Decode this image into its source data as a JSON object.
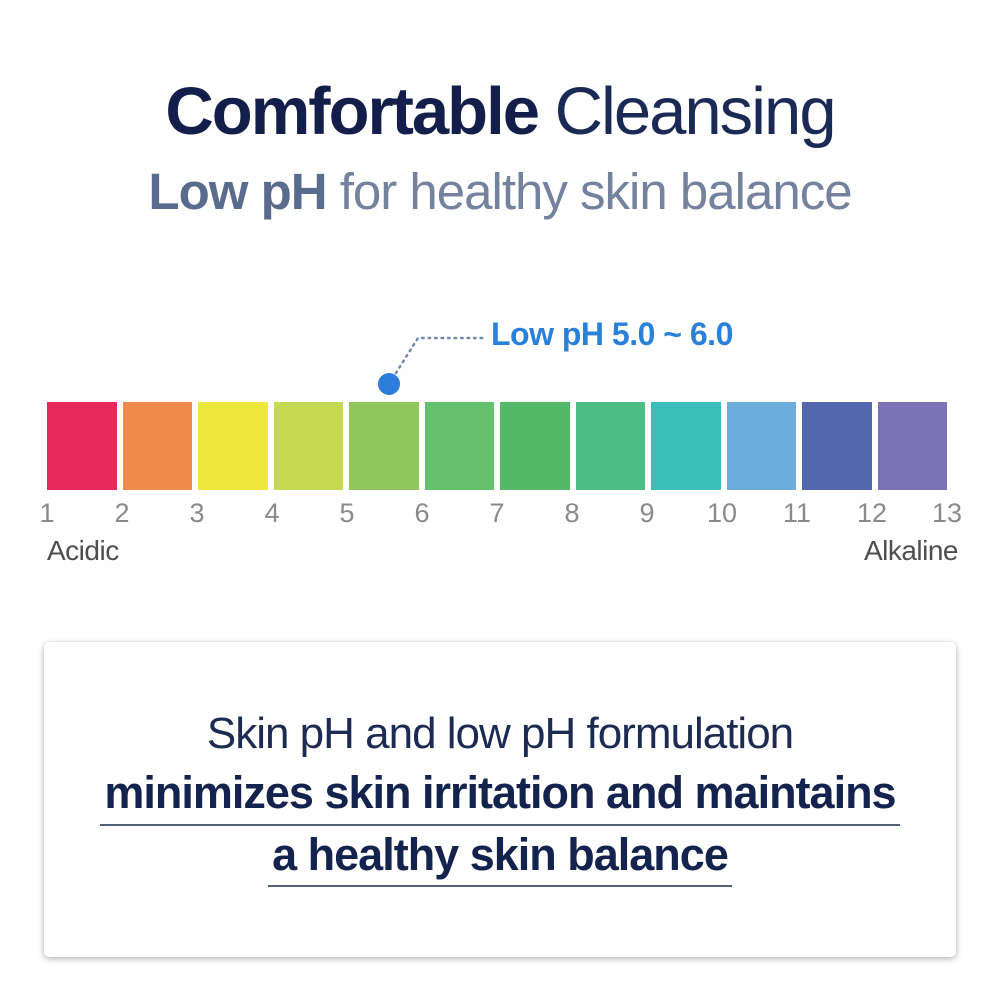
{
  "header": {
    "title_bold": "Comfortable",
    "title_regular": "Cleansing",
    "subtitle_bold": "Low pH",
    "subtitle_regular": "for healthy skin balance"
  },
  "colors": {
    "title_navy": "#131f4a",
    "title_navy_light": "#1b2a55",
    "subtitle_slate_bold": "#5a6c8e",
    "subtitle_slate": "#74829e",
    "accent_blue": "#2b80d9",
    "dot_blue": "#2e7cdb",
    "connector_gray_blue": "#7189a9",
    "tick_gray": "#8a8a8a",
    "end_label_gray": "#4e4e4e",
    "box_text_navy": "#1d2b52",
    "box_bold_navy": "#13234d",
    "underline_gray": "#53607a"
  },
  "chart_data": {
    "type": "scale",
    "title": "pH color scale from 1 (Acidic) to 13 (Alkaline)",
    "axis_ticks": [
      "1",
      "2",
      "3",
      "4",
      "5",
      "6",
      "7",
      "8",
      "9",
      "10",
      "11",
      "12",
      "13"
    ],
    "axis_range": [
      1,
      13
    ],
    "segments": [
      {
        "ph_from": 1,
        "ph_to": 2,
        "color": "#E62A5C"
      },
      {
        "ph_from": 2,
        "ph_to": 3,
        "color": "#EF8A4B"
      },
      {
        "ph_from": 3,
        "ph_to": 4,
        "color": "#EDE83B"
      },
      {
        "ph_from": 4,
        "ph_to": 5,
        "color": "#C6D952"
      },
      {
        "ph_from": 5,
        "ph_to": 6,
        "color": "#8FC75C"
      },
      {
        "ph_from": 6,
        "ph_to": 7,
        "color": "#64C06C"
      },
      {
        "ph_from": 7,
        "ph_to": 8,
        "color": "#53B967"
      },
      {
        "ph_from": 8,
        "ph_to": 9,
        "color": "#4CBE85"
      },
      {
        "ph_from": 9,
        "ph_to": 10,
        "color": "#3BBFBB"
      },
      {
        "ph_from": 10,
        "ph_to": 11,
        "color": "#6CADDD"
      },
      {
        "ph_from": 11,
        "ph_to": 12,
        "color": "#5267AE"
      },
      {
        "ph_from": 12,
        "ph_to": 13,
        "color": "#7B73B6"
      }
    ],
    "callout": {
      "label": "Low pH 5.0 ~ 6.0",
      "points_to_ph": 5.5,
      "label_color": "#2b80d9",
      "dot_color": "#2e7cdb",
      "line_color": "#7189a9"
    },
    "left_label": "Acidic",
    "right_label": "Alkaline",
    "legend": "off",
    "grid": "off"
  },
  "info_box": {
    "line1": "Skin pH and low pH formulation",
    "line2_underlined": "minimizes skin irritation and maintains",
    "line3_underlined": "a healthy skin balance"
  }
}
